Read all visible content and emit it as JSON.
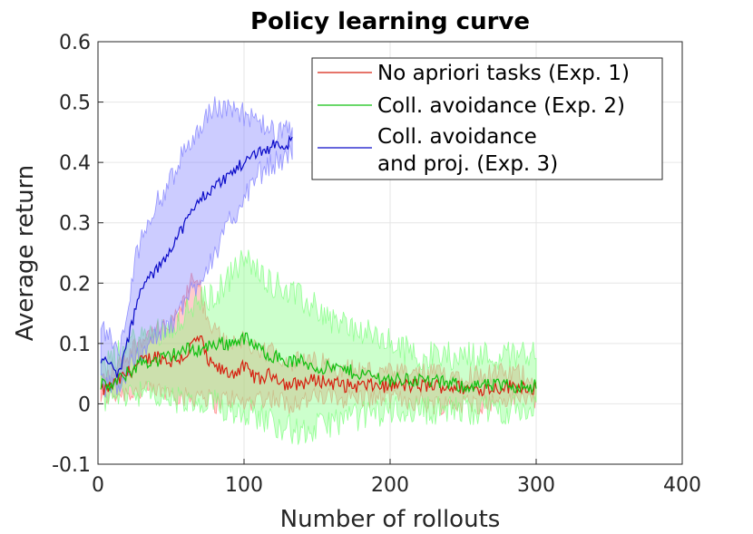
{
  "chart_data": {
    "type": "line",
    "title": "Policy learning curve",
    "xlabel": "Number of rollouts",
    "ylabel": "Average return",
    "xlim": [
      0,
      400
    ],
    "ylim": [
      -0.1,
      0.6
    ],
    "xticks": [
      "0",
      "100",
      "200",
      "300",
      "400"
    ],
    "yticks": [
      "-0.1",
      "0",
      "0.1",
      "0.2",
      "0.3",
      "0.4",
      "0.5",
      "0.6"
    ],
    "grid": true,
    "legend_position": "top-right",
    "series": [
      {
        "name": "No apriori tasks (Exp. 1)",
        "color": "#d62010",
        "band_color": "#ff8080",
        "x": [
          2,
          10,
          20,
          30,
          40,
          50,
          60,
          65,
          70,
          75,
          80,
          90,
          100,
          110,
          120,
          130,
          150,
          170,
          200,
          230,
          260,
          290,
          300
        ],
        "y": [
          0.02,
          0.03,
          0.05,
          0.07,
          0.08,
          0.07,
          0.08,
          0.1,
          0.11,
          0.07,
          0.06,
          0.05,
          0.06,
          0.04,
          0.05,
          0.03,
          0.04,
          0.03,
          0.03,
          0.03,
          0.025,
          0.03,
          0.025
        ],
        "lower": [
          0.01,
          0.015,
          0.02,
          0.02,
          0.02,
          0.02,
          0.01,
          0.01,
          0.02,
          0.01,
          0.0,
          0.01,
          0.0,
          0.01,
          0.01,
          0.0,
          0.01,
          0.01,
          0.01,
          0.0,
          0.0,
          0.01,
          0.01
        ],
        "upper": [
          0.04,
          0.05,
          0.08,
          0.11,
          0.12,
          0.13,
          0.17,
          0.22,
          0.19,
          0.13,
          0.12,
          0.1,
          0.11,
          0.08,
          0.09,
          0.07,
          0.07,
          0.06,
          0.05,
          0.05,
          0.05,
          0.05,
          0.04
        ]
      },
      {
        "name": "Coll. avoidance (Exp. 2)",
        "color": "#10c010",
        "band_color": "#80ff80",
        "x": [
          2,
          10,
          20,
          30,
          40,
          50,
          60,
          70,
          80,
          90,
          100,
          110,
          120,
          130,
          140,
          150,
          160,
          180,
          200,
          220,
          250,
          280,
          300
        ],
        "y": [
          0.03,
          0.03,
          0.05,
          0.07,
          0.07,
          0.08,
          0.09,
          0.09,
          0.1,
          0.1,
          0.11,
          0.09,
          0.08,
          0.07,
          0.07,
          0.06,
          0.06,
          0.05,
          0.04,
          0.04,
          0.03,
          0.03,
          0.03
        ],
        "lower": [
          0.01,
          0.01,
          0.02,
          0.02,
          0.01,
          0.01,
          0.0,
          -0.01,
          0.0,
          -0.01,
          -0.01,
          -0.02,
          -0.03,
          -0.04,
          -0.05,
          -0.04,
          -0.03,
          -0.02,
          -0.01,
          -0.01,
          -0.01,
          -0.01,
          -0.01
        ],
        "upper": [
          0.06,
          0.07,
          0.1,
          0.11,
          0.12,
          0.13,
          0.15,
          0.17,
          0.18,
          0.21,
          0.24,
          0.22,
          0.2,
          0.19,
          0.17,
          0.16,
          0.14,
          0.12,
          0.1,
          0.08,
          0.08,
          0.08,
          0.09
        ]
      },
      {
        "name": "Coll. avoidance\nand proj. (Exp. 3)",
        "color": "#0a0ac8",
        "band_color": "#8080ff",
        "x": [
          2,
          6,
          10,
          14,
          18,
          22,
          26,
          30,
          35,
          40,
          45,
          50,
          55,
          60,
          65,
          70,
          75,
          80,
          85,
          90,
          95,
          100,
          105,
          110,
          115,
          120,
          125,
          130,
          133
        ],
        "y": [
          0.07,
          0.07,
          0.06,
          0.05,
          0.08,
          0.12,
          0.16,
          0.19,
          0.21,
          0.22,
          0.24,
          0.26,
          0.28,
          0.3,
          0.32,
          0.34,
          0.35,
          0.36,
          0.37,
          0.38,
          0.39,
          0.4,
          0.41,
          0.42,
          0.42,
          0.43,
          0.43,
          0.43,
          0.44
        ],
        "lower": [
          0.03,
          0.03,
          0.03,
          0.03,
          0.04,
          0.06,
          0.08,
          0.09,
          0.1,
          0.11,
          0.12,
          0.13,
          0.15,
          0.17,
          0.19,
          0.21,
          0.23,
          0.25,
          0.27,
          0.3,
          0.32,
          0.34,
          0.36,
          0.38,
          0.39,
          0.4,
          0.4,
          0.41,
          0.42
        ],
        "upper": [
          0.12,
          0.12,
          0.1,
          0.08,
          0.12,
          0.18,
          0.24,
          0.28,
          0.31,
          0.33,
          0.35,
          0.37,
          0.4,
          0.42,
          0.44,
          0.46,
          0.48,
          0.49,
          0.49,
          0.49,
          0.49,
          0.48,
          0.47,
          0.46,
          0.46,
          0.45,
          0.45,
          0.45,
          0.45
        ]
      }
    ]
  }
}
